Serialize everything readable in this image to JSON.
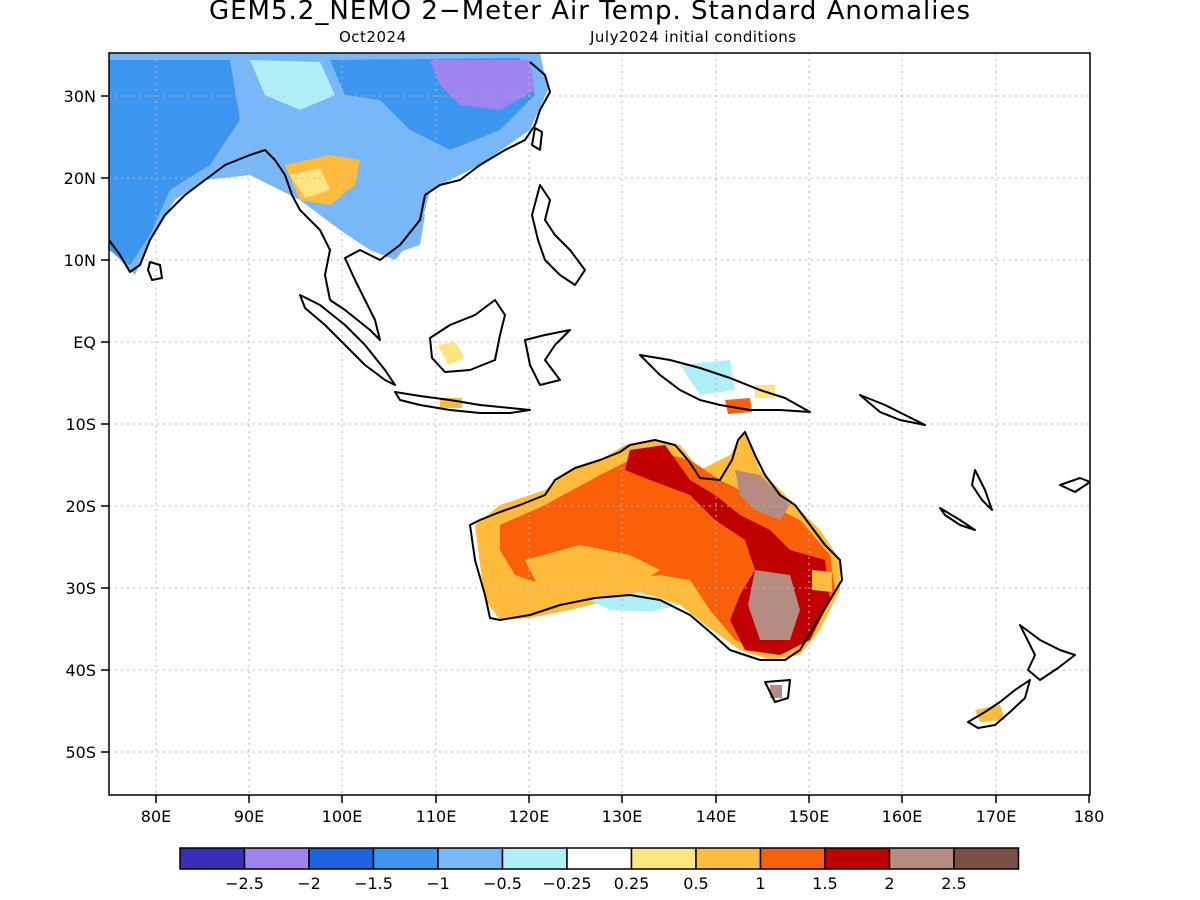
{
  "title": "GEM5.2_NEMO 2−Meter Air Temp. Standard Anomalies",
  "subtitle_left": "Oct2024",
  "subtitle_right": "July2024 initial conditions",
  "lat_labels": [
    "30N",
    "20N",
    "10N",
    "EQ",
    "10S",
    "20S",
    "30S",
    "40S",
    "50S"
  ],
  "lon_labels": [
    "80E",
    "90E",
    "100E",
    "110E",
    "120E",
    "130E",
    "140E",
    "150E",
    "160E",
    "170E",
    "180"
  ],
  "colorbar": {
    "colors": [
      "#3c2db8",
      "#9e84f0",
      "#1c64e0",
      "#3c96f0",
      "#78b8f8",
      "#b0eef8",
      "#ffffff",
      "#ffe482",
      "#ffbc3c",
      "#fa5f0a",
      "#c00000",
      "#b48c82",
      "#7a5046"
    ],
    "tick_labels": [
      "−2.5",
      "−2",
      "−1.5",
      "−1",
      "−0.5",
      "−0.25",
      "0.25",
      "0.5",
      "1",
      "1.5",
      "2",
      "2.5"
    ]
  }
}
